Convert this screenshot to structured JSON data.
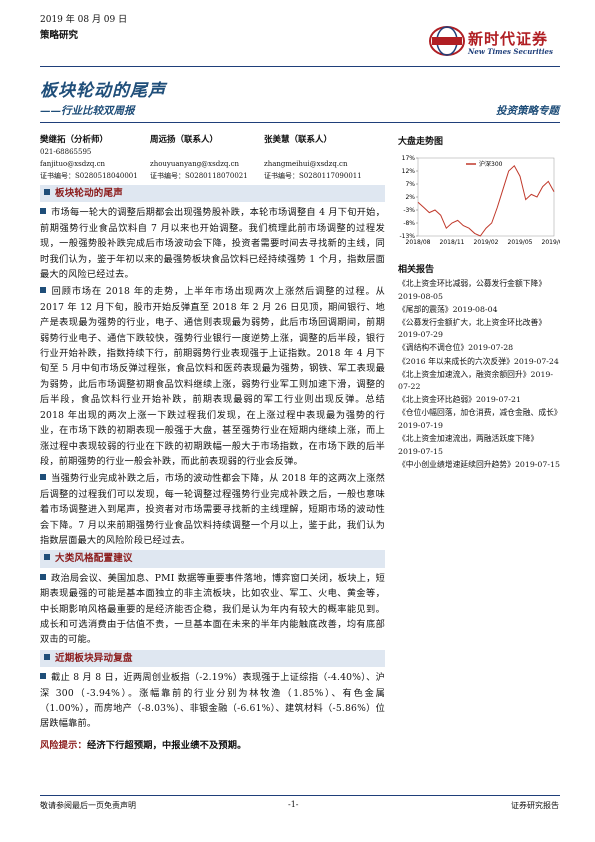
{
  "header": {
    "date": "2019 年 08 月 09 日",
    "category": "策略研究",
    "logo_cn": "新时代证券",
    "logo_en": "New Times Securities",
    "title": "板块轮动的尾声",
    "subtitle": "——行业比较双周报",
    "series": "投资策略专题"
  },
  "authors": [
    {
      "name": "樊继拓（分析师）",
      "phone": "021-68865595",
      "email": "fanjituo@xsdzq.cn",
      "cert": "证书编号：S0280518040001"
    },
    {
      "name": "周远扬（联系人）",
      "email": "zhouyuanyang@xsdzq.cn",
      "cert": "证书编号：S0280118070021"
    },
    {
      "name": "张美慧（联系人）",
      "email": "zhangmeihui@xsdzq.cn",
      "cert": "证书编号：S0280117090011"
    }
  ],
  "sections": [
    {
      "heading": "板块轮动的尾声",
      "paragraphs": [
        "市场每一轮大的调整后期都会出现强势股补跌，本轮市场调整自 4 月下旬开始，前期强势行业食品饮料自 7 月以来也开始调整。我们梳理此前市场调整的过程发现，一般强势股补跌完成后市场波动会下降，投资者需要时间去寻找新的主线，同时我们认为，鉴于年初以来的最强势板块食品饮料已经持续强势 1 个月，指数层面最大的风险已经过去。",
        "回顾市场在 2018 年的走势，上半年市场出现两次上涨然后调整的过程。从 2017 年 12 月下旬，股市开始反弹直至 2018 年 2 月 26 日见顶，期间银行、地产是表现最为强势的行业，电子、通信则表现最为弱势，此后市场回调期间，前期弱势行业电子、通信下跌较快，强势行业银行一度逆势上涨，调整的后半段，银行行业开始补跌，指数持续下行，前期弱势行业表现强于上证指数。2018 年 4 月下旬至 5 月中旬市场反弹过程张，食品饮料和医药表现最为强势，钢铁、军工表现最为弱势，此后市场调整初期食品饮料继续上涨，弱势行业军工则加速下滑，调整的后半段，食品饮料行业开始补跌，前期表现最弱的军工行业则出现反弹。总结 2018 年出现的两次上涨一下跌过程我们发现，在上涨过程中表现最为强势的行业，在市场下跌的初期表现一般强于大盘，甚至强势行业在短期内继续上涨，而上涨过程中表现较弱的行业在下跌的初期跌幅一般大于市场指数，在市场下跌的后半段，前期强势的行业一般会补跌，而此前表现弱的行业会反弹。",
        "当强势行业完成补跌之后，市场的波动性都会下降，从 2018 年的这两次上涨然后调整的过程我们可以发现，每一轮调整过程强势行业完成补跌之后，一般也意味着市场调整进入到尾声，投资者对市场需要寻找新的主线理解，短期市场的波动性会下降。7 月以来前期强势行业食品饮料持续调整一个月以上，鉴于此，我们认为指数层面最大的风险阶段已经过去。"
      ]
    },
    {
      "heading": "大类风格配置建议",
      "paragraphs": [
        "政治局会议、美国加息、PMI 数据等重要事件落地，博弈窗口关闭，板块上，短期表现最强的可能是基本面独立的非主流板块，比如农业、军工、火电、黄金等，中长期影响风格最重要的是经济能否企稳，我们是认为年内有较大的概率能见到。成长和可选消费由于估值不贵，一旦基本面在未来的半年内能触底改善，均有底部双击的可能。"
      ]
    },
    {
      "heading": "近期板块异动复盘",
      "paragraphs": [
        "截止 8 月 8 日，近两周创业板指（-2.19%）表现强于上证综指（-4.40%）、沪深 300（-3.94%）。涨幅靠前的行业分别为林牧渔（1.85%）、有色金属（1.00%），而房地产（-8.03%）、非银金融（-6.61%）、建筑材料（-5.86%）位居跌幅靠前。"
      ]
    }
  ],
  "risk": {
    "label": "风险提示：",
    "text": "经济下行超预期，中报业绩不及预期。"
  },
  "chart_data": {
    "type": "line",
    "title": "大盘走势图",
    "categories": [
      "2018/08",
      null,
      null,
      null,
      null,
      null,
      "2018/11",
      null,
      null,
      null,
      null,
      null,
      "2019/02",
      null,
      null,
      null,
      null,
      null,
      "2019/05",
      null,
      null,
      null,
      null,
      null,
      "2019/08"
    ],
    "series": [
      {
        "name": "沪深300",
        "color": "#c0392b",
        "values": [
          0,
          -2,
          -4,
          -3,
          -5,
          -10,
          -8,
          -7,
          -9,
          -10,
          -12,
          -13,
          -10,
          -8,
          -2,
          5,
          12,
          14,
          10,
          1,
          3,
          2,
          6,
          8,
          4
        ]
      }
    ],
    "ylim": [
      -13,
      17
    ],
    "yticks": [
      {
        "value": 17,
        "label": "17%"
      },
      {
        "value": 12,
        "label": "12%"
      },
      {
        "value": 7,
        "label": "7%"
      },
      {
        "value": 2,
        "label": "2%"
      },
      {
        "value": -3,
        "label": "-3%"
      },
      {
        "value": -8,
        "label": "-8%"
      },
      {
        "value": -13,
        "label": "-13%"
      }
    ],
    "legend": "top"
  },
  "related": {
    "heading": "相关报告",
    "items": [
      {
        "title": "《北上资金环比减弱，公募发行金额下降》",
        "date": "2019-08-05"
      },
      {
        "title": "《尾部的震荡》",
        "date": "2019-08-04"
      },
      {
        "title": "《公募发行金额扩大，北上资金环比改善》",
        "date": "2019-07-29"
      },
      {
        "title": "《调结构不调仓位》",
        "date": "2019-07-28"
      },
      {
        "title": "《2016 年以来成长的六次反弹》",
        "date": "2019-07-24"
      },
      {
        "title": "《北上资金加速流入，融资余额回升》",
        "date": "2019-07-22"
      },
      {
        "title": "《北上资金环比趋弱》",
        "date": "2019-07-21"
      },
      {
        "title": "《仓位小幅回落，加仓消费，减仓金融、成长》",
        "date": "2019-07-19"
      },
      {
        "title": "《北上资金加速流出，两融活跃度下降》",
        "date": "2019-07-15"
      },
      {
        "title": "《中小创业绩增速延续回升趋势》",
        "date": "2019-07-15"
      }
    ]
  },
  "footer": {
    "left": "敬请参阅最后一页免责声明",
    "page": "-1-",
    "right": "证券研究报告"
  }
}
